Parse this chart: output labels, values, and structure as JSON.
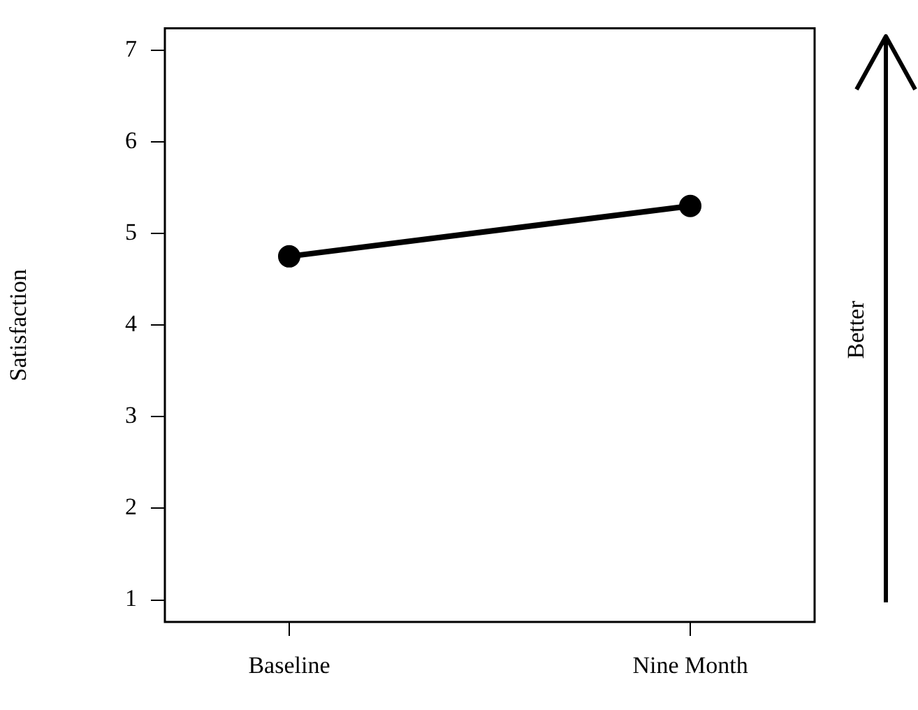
{
  "chart_data": {
    "type": "line",
    "ylabel": "Satisfaction",
    "categories": [
      "Baseline",
      "Nine Month"
    ],
    "values": [
      4.75,
      5.3
    ],
    "color": "#000000",
    "marker": "circle",
    "ylim": [
      0.76,
      7.24
    ],
    "yticks": [
      1,
      2,
      3,
      4,
      5,
      6,
      7
    ],
    "annotations": [
      "Better"
    ]
  }
}
